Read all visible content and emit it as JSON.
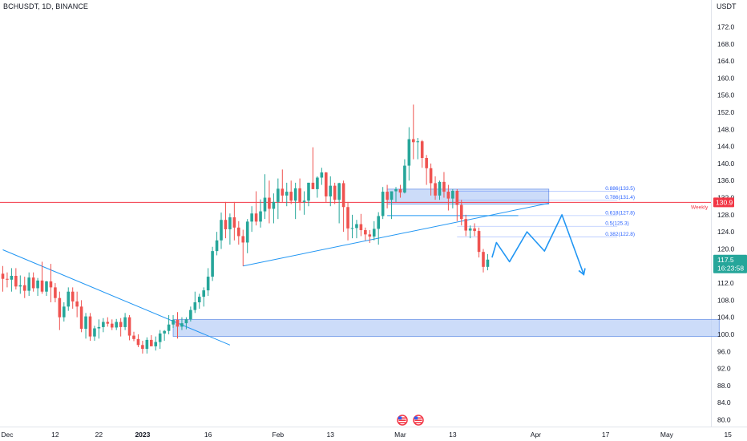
{
  "header": {
    "title": "BCHUSDT, 1D, BINANCE",
    "currency": "USDT"
  },
  "colors": {
    "up": "#26a69a",
    "down": "#ef5350",
    "level": "#f23645",
    "trend": "#2196f3",
    "zone_fill": "#bbd0f7",
    "zone_stroke": "#6f96e8",
    "fib": "#2962ff",
    "price_tag": "#26a69a"
  },
  "chart_data": {
    "type": "candlestick",
    "symbol": "BCHUSDT",
    "timeframe": "1D",
    "exchange": "BINANCE",
    "x_tick_labels": [
      "Dec",
      "12",
      "22",
      "2023",
      "16",
      "Feb",
      "13",
      "Mar",
      "13",
      "Apr",
      "17",
      "May",
      "15"
    ],
    "y_tick_labels": [
      "80.0",
      "84.0",
      "88.0",
      "92.0",
      "96.0",
      "100.0",
      "104.0",
      "108.0",
      "112.0",
      "116.0",
      "120.0",
      "124.0",
      "128.0",
      "132.0",
      "136.0",
      "140.0",
      "144.0",
      "148.0",
      "152.0",
      "156.0",
      "160.0",
      "164.0",
      "168.0",
      "172.0"
    ],
    "ylim": [
      79,
      176
    ],
    "date_range": [
      "2022-11-30",
      "2023-05-17"
    ],
    "candles": [
      {
        "date": "2022-11-30",
        "o": 114.2,
        "h": 116.0,
        "l": 110.0,
        "c": 113.0
      },
      {
        "date": "2022-12-01",
        "o": 113.0,
        "h": 114.5,
        "l": 111.0,
        "c": 112.8
      },
      {
        "date": "2022-12-02",
        "o": 112.8,
        "h": 115.5,
        "l": 110.0,
        "c": 113.7
      },
      {
        "date": "2022-12-03",
        "o": 113.7,
        "h": 115.5,
        "l": 110.5,
        "c": 111.2
      },
      {
        "date": "2022-12-04",
        "o": 111.2,
        "h": 113.8,
        "l": 109.5,
        "c": 111.5
      },
      {
        "date": "2022-12-05",
        "o": 111.5,
        "h": 113.5,
        "l": 108.5,
        "c": 110.2
      },
      {
        "date": "2022-12-06",
        "o": 110.2,
        "h": 114.5,
        "l": 109.0,
        "c": 113.3
      },
      {
        "date": "2022-12-07",
        "o": 113.3,
        "h": 114.5,
        "l": 110.0,
        "c": 110.8
      },
      {
        "date": "2022-12-08",
        "o": 110.8,
        "h": 113.2,
        "l": 109.0,
        "c": 112.6
      },
      {
        "date": "2022-12-09",
        "o": 112.6,
        "h": 117.0,
        "l": 109.5,
        "c": 110.0
      },
      {
        "date": "2022-12-10",
        "o": 110.0,
        "h": 112.5,
        "l": 109.0,
        "c": 112.4
      },
      {
        "date": "2022-12-11",
        "o": 112.4,
        "h": 116.5,
        "l": 107.5,
        "c": 111.0
      },
      {
        "date": "2022-12-12",
        "o": 111.0,
        "h": 112.0,
        "l": 107.5,
        "c": 108.5
      },
      {
        "date": "2022-12-13",
        "o": 108.5,
        "h": 110.0,
        "l": 101.0,
        "c": 104.0
      },
      {
        "date": "2022-12-14",
        "o": 104.0,
        "h": 107.5,
        "l": 103.0,
        "c": 106.5
      },
      {
        "date": "2022-12-15",
        "o": 106.5,
        "h": 111.0,
        "l": 105.5,
        "c": 110.0
      },
      {
        "date": "2022-12-16",
        "o": 110.0,
        "h": 111.0,
        "l": 106.0,
        "c": 107.7
      },
      {
        "date": "2022-12-17",
        "o": 107.7,
        "h": 110.0,
        "l": 104.0,
        "c": 106.5
      },
      {
        "date": "2022-12-18",
        "o": 106.5,
        "h": 108.0,
        "l": 100.5,
        "c": 101.3
      },
      {
        "date": "2022-12-19",
        "o": 101.3,
        "h": 105.0,
        "l": 99.0,
        "c": 104.2
      },
      {
        "date": "2022-12-20",
        "o": 104.2,
        "h": 105.0,
        "l": 98.5,
        "c": 99.5
      },
      {
        "date": "2022-12-21",
        "o": 99.5,
        "h": 102.0,
        "l": 98.5,
        "c": 101.4
      },
      {
        "date": "2022-12-22",
        "o": 101.4,
        "h": 103.5,
        "l": 99.0,
        "c": 101.7
      },
      {
        "date": "2022-12-23",
        "o": 101.7,
        "h": 103.8,
        "l": 100.5,
        "c": 102.9
      },
      {
        "date": "2022-12-24",
        "o": 102.9,
        "h": 104.0,
        "l": 101.8,
        "c": 102.5
      },
      {
        "date": "2022-12-25",
        "o": 102.5,
        "h": 103.5,
        "l": 101.0,
        "c": 101.6
      },
      {
        "date": "2022-12-26",
        "o": 101.6,
        "h": 103.6,
        "l": 101.0,
        "c": 102.9
      },
      {
        "date": "2022-12-27",
        "o": 102.9,
        "h": 103.8,
        "l": 99.5,
        "c": 101.7
      },
      {
        "date": "2022-12-28",
        "o": 101.7,
        "h": 105.0,
        "l": 101.0,
        "c": 104.0
      },
      {
        "date": "2022-12-29",
        "o": 104.0,
        "h": 104.5,
        "l": 98.6,
        "c": 99.7
      },
      {
        "date": "2022-12-30",
        "o": 99.7,
        "h": 100.6,
        "l": 98.4,
        "c": 98.9
      },
      {
        "date": "2022-12-31",
        "o": 98.9,
        "h": 100.0,
        "l": 97.0,
        "c": 97.5
      },
      {
        "date": "2023-01-01",
        "o": 97.5,
        "h": 98.5,
        "l": 95.5,
        "c": 96.6
      },
      {
        "date": "2023-01-02",
        "o": 96.6,
        "h": 99.3,
        "l": 95.5,
        "c": 98.7
      },
      {
        "date": "2023-01-03",
        "o": 98.7,
        "h": 99.8,
        "l": 97.5,
        "c": 97.2
      },
      {
        "date": "2023-01-04",
        "o": 97.2,
        "h": 99.5,
        "l": 96.2,
        "c": 98.2
      },
      {
        "date": "2023-01-05",
        "o": 98.2,
        "h": 101.0,
        "l": 96.6,
        "c": 100.2
      },
      {
        "date": "2023-01-06",
        "o": 100.2,
        "h": 101.0,
        "l": 98.5,
        "c": 100.8
      },
      {
        "date": "2023-01-07",
        "o": 100.8,
        "h": 104.5,
        "l": 100.0,
        "c": 102.3
      },
      {
        "date": "2023-01-08",
        "o": 102.3,
        "h": 104.5,
        "l": 101.5,
        "c": 103.4
      },
      {
        "date": "2023-01-09",
        "o": 103.4,
        "h": 105.2,
        "l": 99.0,
        "c": 101.8
      },
      {
        "date": "2023-01-10",
        "o": 101.8,
        "h": 104.0,
        "l": 101.0,
        "c": 102.6
      },
      {
        "date": "2023-01-11",
        "o": 102.6,
        "h": 104.0,
        "l": 101.2,
        "c": 103.5
      },
      {
        "date": "2023-01-12",
        "o": 103.5,
        "h": 106.5,
        "l": 103.0,
        "c": 105.7
      },
      {
        "date": "2023-01-13",
        "o": 105.7,
        "h": 110.0,
        "l": 105.0,
        "c": 107.5
      },
      {
        "date": "2023-01-14",
        "o": 107.5,
        "h": 109.5,
        "l": 106.0,
        "c": 108.8
      },
      {
        "date": "2023-01-15",
        "o": 108.8,
        "h": 111.0,
        "l": 106.5,
        "c": 110.3
      },
      {
        "date": "2023-01-16",
        "o": 110.3,
        "h": 115.5,
        "l": 109.0,
        "c": 113.5
      },
      {
        "date": "2023-01-17",
        "o": 113.5,
        "h": 120.5,
        "l": 112.5,
        "c": 119.5
      },
      {
        "date": "2023-01-18",
        "o": 119.5,
        "h": 124.0,
        "l": 118.5,
        "c": 122.0
      },
      {
        "date": "2023-01-19",
        "o": 122.0,
        "h": 128.5,
        "l": 120.0,
        "c": 126.8
      },
      {
        "date": "2023-01-20",
        "o": 126.8,
        "h": 131.0,
        "l": 122.5,
        "c": 124.6
      },
      {
        "date": "2023-01-21",
        "o": 124.6,
        "h": 128.3,
        "l": 121.0,
        "c": 127.4
      },
      {
        "date": "2023-01-22",
        "o": 127.4,
        "h": 131.0,
        "l": 122.0,
        "c": 125.0
      },
      {
        "date": "2023-01-23",
        "o": 125.0,
        "h": 126.5,
        "l": 121.0,
        "c": 123.0
      },
      {
        "date": "2023-01-24",
        "o": 123.0,
        "h": 124.5,
        "l": 116.0,
        "c": 121.5
      },
      {
        "date": "2023-01-25",
        "o": 121.5,
        "h": 127.0,
        "l": 119.0,
        "c": 126.4
      },
      {
        "date": "2023-01-26",
        "o": 126.4,
        "h": 130.0,
        "l": 124.0,
        "c": 128.3
      },
      {
        "date": "2023-01-27",
        "o": 128.3,
        "h": 133.5,
        "l": 125.5,
        "c": 126.4
      },
      {
        "date": "2023-01-28",
        "o": 126.4,
        "h": 131.6,
        "l": 125.0,
        "c": 128.8
      },
      {
        "date": "2023-01-29",
        "o": 128.8,
        "h": 137.5,
        "l": 127.0,
        "c": 132.0
      },
      {
        "date": "2023-01-30",
        "o": 132.0,
        "h": 136.0,
        "l": 126.0,
        "c": 129.4
      },
      {
        "date": "2023-01-31",
        "o": 129.4,
        "h": 133.0,
        "l": 126.0,
        "c": 131.0
      },
      {
        "date": "2023-02-01",
        "o": 131.0,
        "h": 136.5,
        "l": 127.0,
        "c": 134.1
      },
      {
        "date": "2023-02-02",
        "o": 134.1,
        "h": 138.6,
        "l": 131.0,
        "c": 132.5
      },
      {
        "date": "2023-02-03",
        "o": 132.5,
        "h": 135.5,
        "l": 130.0,
        "c": 133.4
      },
      {
        "date": "2023-02-04",
        "o": 133.4,
        "h": 136.0,
        "l": 130.5,
        "c": 131.3
      },
      {
        "date": "2023-02-05",
        "o": 131.3,
        "h": 135.5,
        "l": 127.0,
        "c": 134.2
      },
      {
        "date": "2023-02-06",
        "o": 134.2,
        "h": 136.5,
        "l": 129.0,
        "c": 131.0
      },
      {
        "date": "2023-02-07",
        "o": 131.0,
        "h": 133.5,
        "l": 128.0,
        "c": 131.3
      },
      {
        "date": "2023-02-08",
        "o": 131.3,
        "h": 135.5,
        "l": 130.0,
        "c": 135.5
      },
      {
        "date": "2023-02-09",
        "o": 135.5,
        "h": 143.8,
        "l": 134.0,
        "c": 134.0
      },
      {
        "date": "2023-02-10",
        "o": 134.0,
        "h": 137.0,
        "l": 132.0,
        "c": 136.7
      },
      {
        "date": "2023-02-11",
        "o": 136.7,
        "h": 139.0,
        "l": 135.0,
        "c": 137.9
      },
      {
        "date": "2023-02-12",
        "o": 137.9,
        "h": 138.0,
        "l": 131.0,
        "c": 132.3
      },
      {
        "date": "2023-02-13",
        "o": 132.3,
        "h": 137.0,
        "l": 130.0,
        "c": 134.8
      },
      {
        "date": "2023-02-14",
        "o": 134.8,
        "h": 135.5,
        "l": 130.5,
        "c": 131.5
      },
      {
        "date": "2023-02-15",
        "o": 131.5,
        "h": 135.5,
        "l": 126.0,
        "c": 135.4
      },
      {
        "date": "2023-02-16",
        "o": 135.4,
        "h": 136.0,
        "l": 124.0,
        "c": 129.8
      },
      {
        "date": "2023-02-17",
        "o": 129.8,
        "h": 131.0,
        "l": 122.0,
        "c": 124.8
      },
      {
        "date": "2023-02-18",
        "o": 124.8,
        "h": 128.0,
        "l": 122.5,
        "c": 124.9
      },
      {
        "date": "2023-02-19",
        "o": 124.9,
        "h": 126.8,
        "l": 122.5,
        "c": 125.8
      },
      {
        "date": "2023-02-20",
        "o": 125.8,
        "h": 128.2,
        "l": 123.0,
        "c": 124.4
      },
      {
        "date": "2023-02-21",
        "o": 124.4,
        "h": 125.0,
        "l": 122.0,
        "c": 123.4
      },
      {
        "date": "2023-02-22",
        "o": 123.4,
        "h": 124.4,
        "l": 121.4,
        "c": 122.9
      },
      {
        "date": "2023-02-23",
        "o": 122.9,
        "h": 126.5,
        "l": 122.0,
        "c": 124.7
      },
      {
        "date": "2023-02-24",
        "o": 124.7,
        "h": 128.6,
        "l": 121.0,
        "c": 127.7
      },
      {
        "date": "2023-02-25",
        "o": 127.7,
        "h": 134.5,
        "l": 127.0,
        "c": 133.4
      },
      {
        "date": "2023-02-26",
        "o": 133.4,
        "h": 135.0,
        "l": 129.5,
        "c": 131.5
      },
      {
        "date": "2023-02-27",
        "o": 131.5,
        "h": 133.0,
        "l": 127.0,
        "c": 133.5
      },
      {
        "date": "2023-02-28",
        "o": 133.5,
        "h": 134.5,
        "l": 131.0,
        "c": 134.0
      },
      {
        "date": "2023-03-01",
        "o": 134.0,
        "h": 135.0,
        "l": 132.0,
        "c": 133.2
      },
      {
        "date": "2023-03-02",
        "o": 133.2,
        "h": 141.0,
        "l": 133.0,
        "c": 139.5
      },
      {
        "date": "2023-03-03",
        "o": 139.5,
        "h": 148.5,
        "l": 136.0,
        "c": 145.7
      },
      {
        "date": "2023-03-04",
        "o": 145.7,
        "h": 153.8,
        "l": 141.0,
        "c": 145.0
      },
      {
        "date": "2023-03-05",
        "o": 145.0,
        "h": 146.0,
        "l": 141.0,
        "c": 145.2
      },
      {
        "date": "2023-03-06",
        "o": 145.2,
        "h": 145.5,
        "l": 139.0,
        "c": 141.3
      },
      {
        "date": "2023-03-07",
        "o": 141.3,
        "h": 142.0,
        "l": 135.0,
        "c": 138.9
      },
      {
        "date": "2023-03-08",
        "o": 138.9,
        "h": 140.0,
        "l": 132.5,
        "c": 135.4
      },
      {
        "date": "2023-03-09",
        "o": 135.4,
        "h": 137.0,
        "l": 131.5,
        "c": 132.5
      },
      {
        "date": "2023-03-10",
        "o": 132.5,
        "h": 136.0,
        "l": 131.5,
        "c": 135.7
      },
      {
        "date": "2023-03-11",
        "o": 135.7,
        "h": 138.0,
        "l": 132.0,
        "c": 133.4
      },
      {
        "date": "2023-03-12",
        "o": 133.4,
        "h": 135.0,
        "l": 129.0,
        "c": 131.8
      },
      {
        "date": "2023-03-13",
        "o": 131.8,
        "h": 134.0,
        "l": 129.5,
        "c": 133.6
      },
      {
        "date": "2023-03-14",
        "o": 133.6,
        "h": 134.0,
        "l": 126.5,
        "c": 130.3
      },
      {
        "date": "2023-03-15",
        "o": 130.3,
        "h": 131.5,
        "l": 125.5,
        "c": 127.0
      },
      {
        "date": "2023-03-16",
        "o": 127.0,
        "h": 128.0,
        "l": 123.0,
        "c": 124.3
      },
      {
        "date": "2023-03-17",
        "o": 124.3,
        "h": 125.5,
        "l": 122.5,
        "c": 124.8
      },
      {
        "date": "2023-03-18",
        "o": 124.8,
        "h": 126.0,
        "l": 123.0,
        "c": 124.2
      },
      {
        "date": "2023-03-19",
        "o": 124.2,
        "h": 125.0,
        "l": 118.0,
        "c": 119.3
      },
      {
        "date": "2023-03-20",
        "o": 119.3,
        "h": 120.0,
        "l": 114.5,
        "c": 115.8
      },
      {
        "date": "2023-03-21",
        "o": 115.8,
        "h": 118.8,
        "l": 115.0,
        "c": 117.5
      }
    ],
    "horizontal_levels": [
      {
        "price": 130.9,
        "label": "Weekly",
        "tag": "130.9"
      }
    ],
    "last_price": {
      "price": 117.5,
      "label": "117.5",
      "countdown": "16:23:58"
    },
    "fib_levels": [
      {
        "label": "0.886(133.5)",
        "value": 133.5
      },
      {
        "label": "0.786(131.4)",
        "value": 131.4
      },
      {
        "label": "0.618(127.8)",
        "value": 127.8
      },
      {
        "label": "0.5(125.3)",
        "value": 125.3
      },
      {
        "label": "0.382(122.8)",
        "value": 122.8
      }
    ],
    "zones": [
      {
        "date_from": "2023-02-26",
        "date_to": "2023-04-04",
        "low": 130.5,
        "high": 134.0
      },
      {
        "date_from": "2023-01-08",
        "date_to": "2023-05-13",
        "low": 99.5,
        "high": 103.5
      }
    ],
    "trendlines": [
      {
        "from": {
          "date": "2022-11-30",
          "price": 119.8
        },
        "to": {
          "date": "2023-01-21",
          "price": 97.5
        }
      },
      {
        "from": {
          "date": "2023-01-24",
          "price": 116.0
        },
        "to": {
          "date": "2023-04-04",
          "price": 130.7
        }
      },
      {
        "from": {
          "date": "2023-02-26",
          "price": 127.8
        },
        "to": {
          "date": "2023-03-28",
          "price": 127.8
        }
      }
    ],
    "projection_path": [
      {
        "date": "2023-03-22",
        "price": 118.0
      },
      {
        "date": "2023-03-23",
        "price": 121.5
      },
      {
        "date": "2023-03-26",
        "price": 117.0
      },
      {
        "date": "2023-03-30",
        "price": 124.0
      },
      {
        "date": "2023-04-03",
        "price": 119.5
      },
      {
        "date": "2023-04-07",
        "price": 128.0
      },
      {
        "date": "2023-04-12",
        "price": 114.0
      }
    ]
  }
}
